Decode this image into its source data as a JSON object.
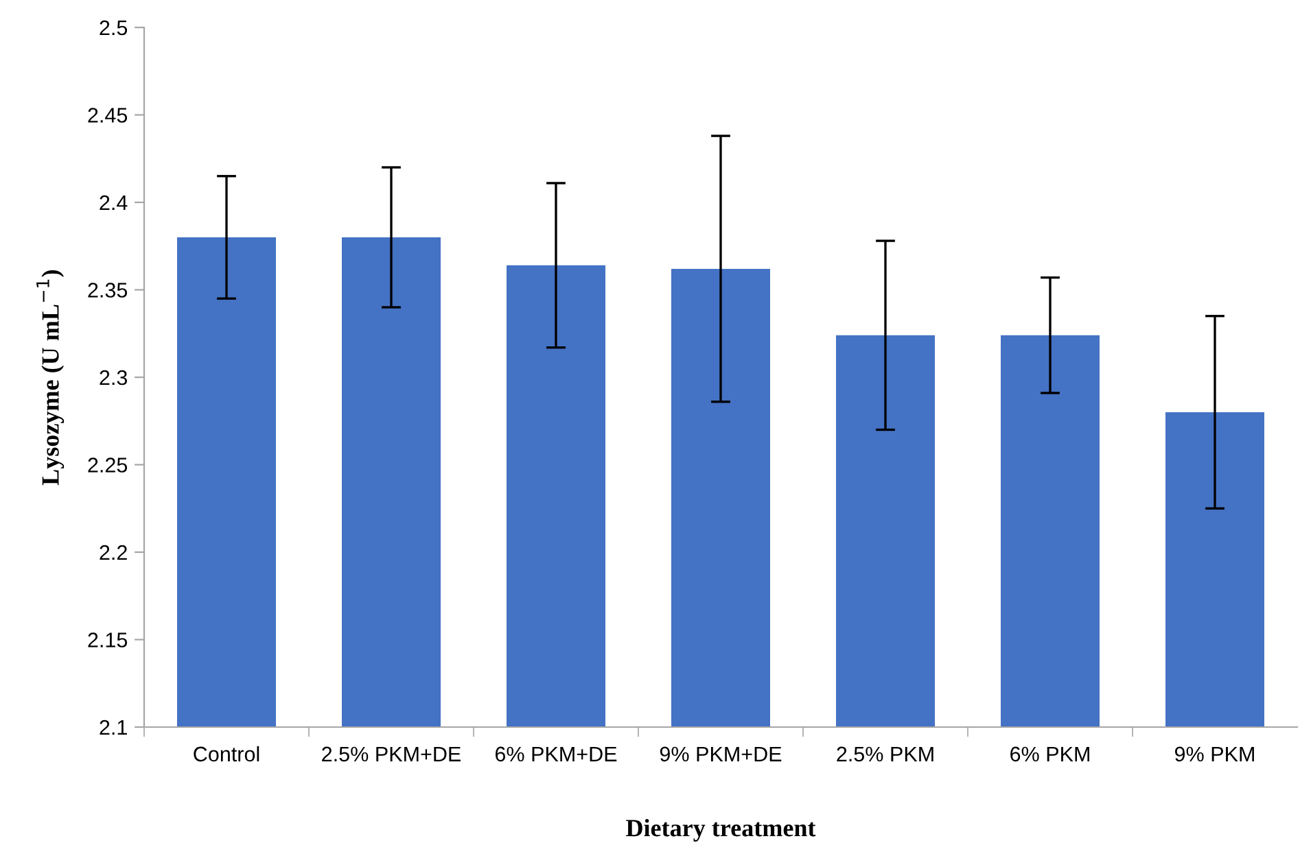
{
  "chart_data": {
    "type": "bar",
    "xlabel": "Dietary treatment",
    "ylabel": "Lysozyme (U mL$^{−1}$)",
    "categories": [
      "Control",
      "2.5% PKM+DE",
      "6% PKM+DE",
      "9% PKM+DE",
      "2.5% PKM",
      "6% PKM",
      "9% PKM"
    ],
    "values": [
      2.38,
      2.38,
      2.364,
      2.362,
      2.324,
      2.324,
      2.28
    ],
    "errors": [
      0.035,
      0.04,
      0.047,
      0.076,
      0.054,
      0.033,
      0.055
    ],
    "color": "#4472c4",
    "ylim": [
      2.1,
      2.5
    ],
    "yticks": [
      2.1,
      2.15,
      2.2,
      2.25,
      2.3,
      2.35,
      2.4,
      2.45,
      2.5
    ],
    "grid": false,
    "legend": false
  }
}
